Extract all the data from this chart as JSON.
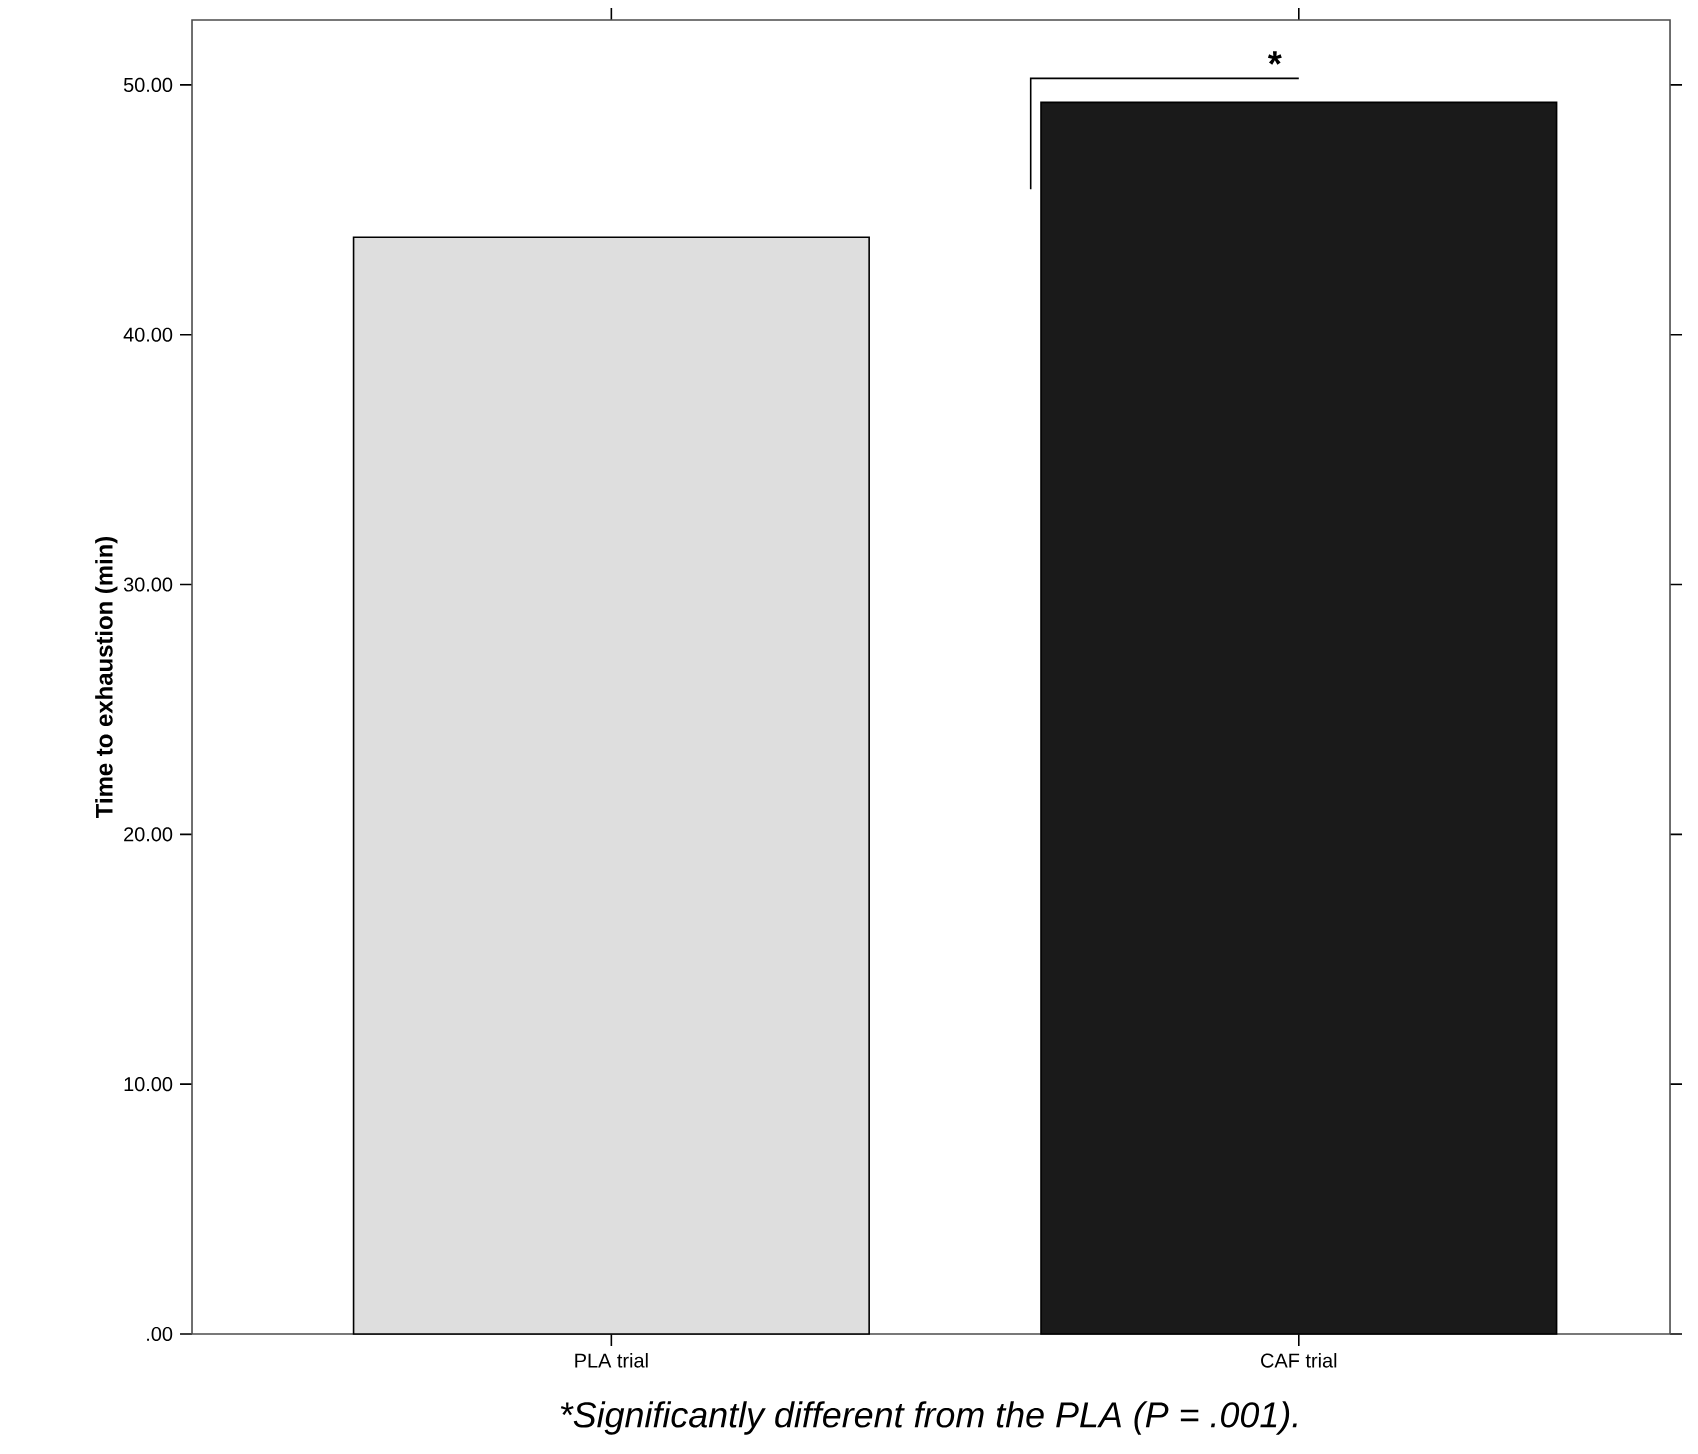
{
  "chart_data": {
    "type": "bar",
    "ylabel": "Time to exhaustion (min)",
    "categories": [
      "PLA trial",
      "CAF trial"
    ],
    "values": [
      43.9,
      49.3
    ],
    "colors": [
      "#dedede",
      "#1a1a1a"
    ],
    "ylim": [
      0,
      52.6
    ],
    "yticks": [
      {
        "value": 0,
        "label": ".00"
      },
      {
        "value": 10,
        "label": "10.00"
      },
      {
        "value": 20,
        "label": "20.00"
      },
      {
        "value": 30,
        "label": "30.00"
      },
      {
        "value": 40,
        "label": "40.00"
      },
      {
        "value": 50,
        "label": "50.00"
      }
    ],
    "annotations": [
      "*",
      "*Significantly different from the PLA (P = .001)."
    ]
  }
}
